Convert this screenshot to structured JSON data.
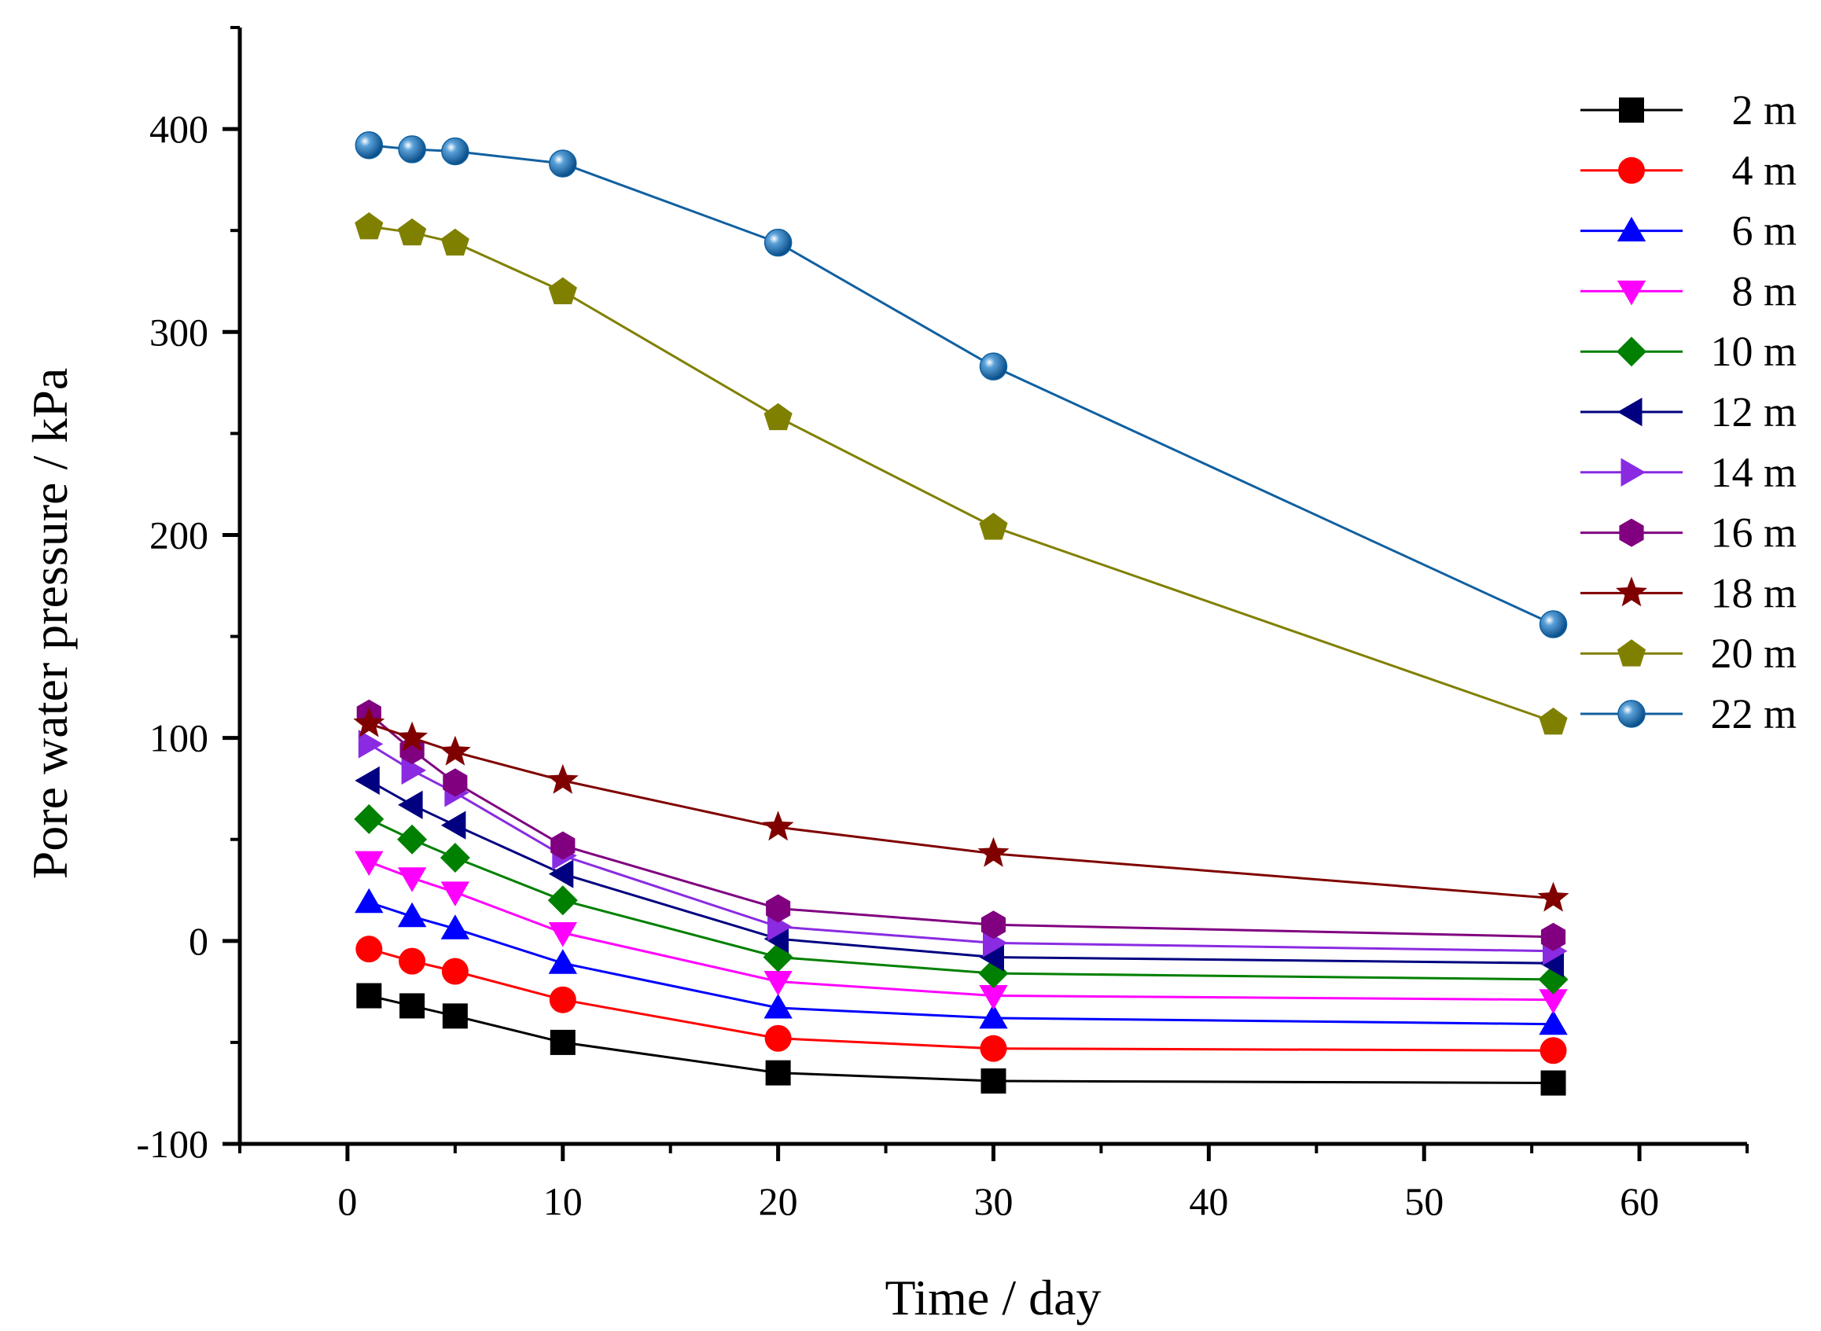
{
  "chart_data": {
    "type": "line",
    "xlabel": "Time / day",
    "ylabel": "Pore water pressure / kPa",
    "xlim": [
      -5,
      65
    ],
    "ylim": [
      -100,
      450
    ],
    "x_ticks": [
      0,
      10,
      20,
      30,
      40,
      50,
      60
    ],
    "x_tick_labels": [
      "0",
      "10",
      "20",
      "30",
      "40",
      "50",
      "60"
    ],
    "y_ticks": [
      -100,
      0,
      100,
      200,
      300,
      400
    ],
    "y_tick_labels": [
      "-100",
      "0",
      "100",
      "200",
      "300",
      "400"
    ],
    "legend_position": "top-right",
    "x": [
      1,
      3,
      5,
      10,
      20,
      30,
      56
    ],
    "series": [
      {
        "name": "2 m",
        "color": "#000000",
        "marker": "square",
        "values": [
          -27,
          -32,
          -37,
          -50,
          -65,
          -69,
          -70
        ]
      },
      {
        "name": "4 m",
        "color": "#ff0000",
        "marker": "circle",
        "values": [
          -4,
          -10,
          -15,
          -29,
          -48,
          -53,
          -54
        ]
      },
      {
        "name": "6 m",
        "color": "#0000ff",
        "marker": "triangle-up",
        "values": [
          19,
          12,
          6,
          -11,
          -33,
          -38,
          -41
        ]
      },
      {
        "name": "8 m",
        "color": "#ff00ff",
        "marker": "triangle-down",
        "values": [
          39,
          31,
          24,
          4,
          -20,
          -27,
          -29
        ]
      },
      {
        "name": "10 m",
        "color": "#008000",
        "marker": "diamond",
        "values": [
          60,
          50,
          41,
          20,
          -8,
          -16,
          -19
        ]
      },
      {
        "name": "12 m",
        "color": "#000080",
        "marker": "triangle-left",
        "values": [
          79,
          67,
          57,
          33,
          1,
          -8,
          -11
        ]
      },
      {
        "name": "14 m",
        "color": "#8a2be2",
        "marker": "triangle-right",
        "values": [
          97,
          84,
          73,
          42,
          7,
          -1,
          -5
        ]
      },
      {
        "name": "16 m",
        "color": "#800080",
        "marker": "hexagon",
        "values": [
          112,
          94,
          78,
          47,
          16,
          8,
          2
        ]
      },
      {
        "name": "18 m",
        "color": "#800000",
        "marker": "star",
        "values": [
          107,
          100,
          93,
          79,
          56,
          43,
          21
        ]
      },
      {
        "name": "20 m",
        "color": "#808000",
        "marker": "pentagon",
        "values": [
          352,
          349,
          344,
          320,
          258,
          204,
          108
        ]
      },
      {
        "name": "22 m",
        "color": "#1060a0",
        "marker": "sphere",
        "values": [
          392,
          390,
          389,
          383,
          344,
          283,
          156
        ]
      }
    ]
  }
}
